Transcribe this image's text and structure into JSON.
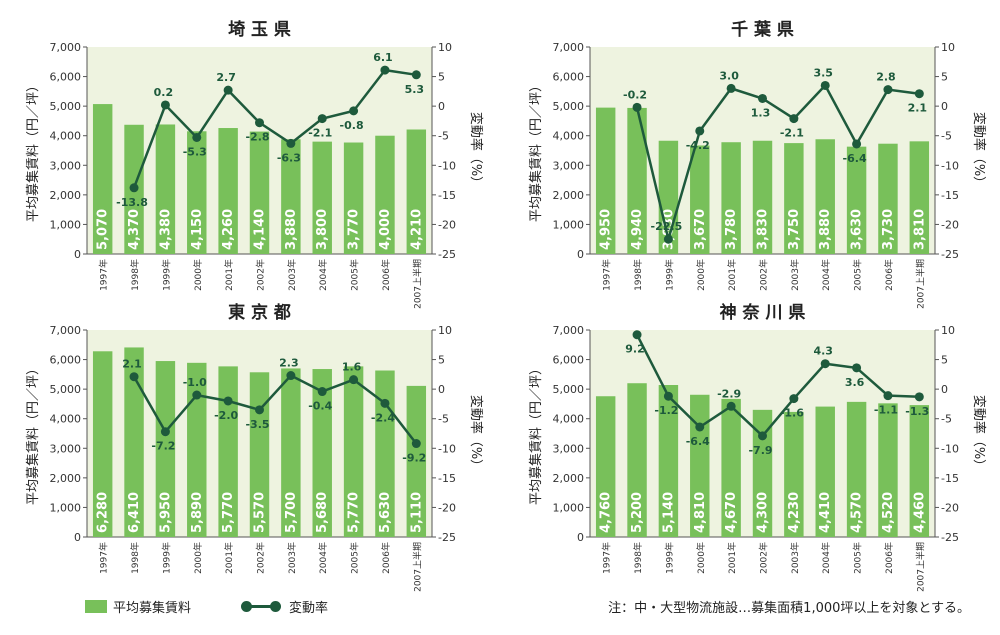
{
  "legend": {
    "bar_label": "平均募集賃料",
    "line_label": "変動率"
  },
  "note": "注：中・大型物流施設…募集面積1,000坪以上を対象とする。",
  "colors": {
    "bar": "#78c05a",
    "bar_label": "#ffffff",
    "line": "#1e5a3c",
    "plot_bg": "#eef3e0"
  },
  "chart_data": [
    {
      "type": "bar",
      "title": "埼 玉 県",
      "ylabel": "平均募集賃料（円／坪）",
      "y2label": "変動率（%）",
      "ylim": [
        0,
        7000
      ],
      "y2lim": [
        -25,
        10
      ],
      "yticks": [
        "0",
        "1,000",
        "2,000",
        "3,000",
        "4,000",
        "5,000",
        "6,000",
        "7,000"
      ],
      "y2ticks": [
        "-25",
        "-20",
        "-15",
        "-10",
        "-5",
        "0",
        "5",
        "10"
      ],
      "categories": [
        "1997年",
        "1998年",
        "1999年",
        "2000年",
        "2001年",
        "2002年",
        "2003年",
        "2004年",
        "2005年",
        "2006年",
        "2007上半期"
      ],
      "series": [
        {
          "name": "平均募集賃料",
          "type": "bar",
          "values": [
            5070,
            4370,
            4380,
            4150,
            4260,
            4140,
            3880,
            3800,
            3770,
            4000,
            4210
          ],
          "labels": [
            "5,070",
            "4,370",
            "4,380",
            "4,150",
            "4,260",
            "4,140",
            "3,880",
            "3,800",
            "3,770",
            "4,000",
            "4,210"
          ]
        },
        {
          "name": "変動率",
          "type": "line",
          "values": [
            null,
            -13.8,
            0.2,
            -5.3,
            2.7,
            -2.8,
            -6.3,
            -2.1,
            -0.8,
            6.1,
            5.3
          ],
          "labels": [
            "",
            "-13.8",
            "0.2",
            "-5.3",
            "2.7",
            "-2.8",
            "-6.3",
            "-2.1",
            "-0.8",
            "6.1",
            "5.3"
          ]
        }
      ]
    },
    {
      "type": "bar",
      "title": "千 葉 県",
      "ylabel": "平均募集賃料（円／坪）",
      "y2label": "変動率（%）",
      "ylim": [
        0,
        7000
      ],
      "y2lim": [
        -25,
        10
      ],
      "yticks": [
        "0",
        "1,000",
        "2,000",
        "3,000",
        "4,000",
        "5,000",
        "6,000",
        "7,000"
      ],
      "y2ticks": [
        "-25",
        "-20",
        "-15",
        "-10",
        "-5",
        "0",
        "5",
        "10"
      ],
      "categories": [
        "1997年",
        "1998年",
        "1999年",
        "2000年",
        "2001年",
        "2002年",
        "2003年",
        "2004年",
        "2005年",
        "2006年",
        "2007上半期"
      ],
      "series": [
        {
          "name": "平均募集賃料",
          "type": "bar",
          "values": [
            4950,
            4940,
            3830,
            3670,
            3780,
            3830,
            3750,
            3880,
            3630,
            3730,
            3810
          ],
          "labels": [
            "4,950",
            "4,940",
            "3,830",
            "3,670",
            "3,780",
            "3,830",
            "3,750",
            "3,880",
            "3,630",
            "3,730",
            "3,810"
          ]
        },
        {
          "name": "変動率",
          "type": "line",
          "values": [
            null,
            -0.2,
            -22.5,
            -4.2,
            3.0,
            1.3,
            -2.1,
            3.5,
            -6.4,
            2.8,
            2.1
          ],
          "labels": [
            "",
            "-0.2",
            "-22.5",
            "-4.2",
            "3.0",
            "1.3",
            "-2.1",
            "3.5",
            "-6.4",
            "2.8",
            "2.1"
          ]
        }
      ]
    },
    {
      "type": "bar",
      "title": "東 京 都",
      "ylabel": "平均募集賃料（円／坪）",
      "y2label": "変動率（%）",
      "ylim": [
        0,
        7000
      ],
      "y2lim": [
        -25,
        10
      ],
      "yticks": [
        "0",
        "1,000",
        "2,000",
        "3,000",
        "4,000",
        "5,000",
        "6,000",
        "7,000"
      ],
      "y2ticks": [
        "-25",
        "-20",
        "-15",
        "-10",
        "-5",
        "0",
        "5",
        "10"
      ],
      "categories": [
        "1997年",
        "1998年",
        "1999年",
        "2000年",
        "2001年",
        "2002年",
        "2003年",
        "2004年",
        "2005年",
        "2006年",
        "2007上半期"
      ],
      "series": [
        {
          "name": "平均募集賃料",
          "type": "bar",
          "values": [
            6280,
            6410,
            5950,
            5890,
            5770,
            5570,
            5700,
            5680,
            5770,
            5630,
            5110
          ],
          "labels": [
            "6,280",
            "6,410",
            "5,950",
            "5,890",
            "5,770",
            "5,570",
            "5,700",
            "5,680",
            "5,770",
            "5,630",
            "5,110"
          ]
        },
        {
          "name": "変動率",
          "type": "line",
          "values": [
            null,
            2.1,
            -7.2,
            -1.0,
            -2.0,
            -3.5,
            2.3,
            -0.4,
            1.6,
            -2.4,
            -9.2
          ],
          "labels": [
            "",
            "2.1",
            "-7.2",
            "-1.0",
            "-2.0",
            "-3.5",
            "2.3",
            "-0.4",
            "1.6",
            "-2.4",
            "-9.2"
          ]
        }
      ]
    },
    {
      "type": "bar",
      "title": "神 奈 川 県",
      "ylabel": "平均募集賃料（円／坪）",
      "y2label": "変動率（%）",
      "ylim": [
        0,
        7000
      ],
      "y2lim": [
        -25,
        10
      ],
      "yticks": [
        "0",
        "1,000",
        "2,000",
        "3,000",
        "4,000",
        "5,000",
        "6,000",
        "7,000"
      ],
      "y2ticks": [
        "-25",
        "-20",
        "-15",
        "-10",
        "-5",
        "0",
        "5",
        "10"
      ],
      "categories": [
        "1997年",
        "1998年",
        "1999年",
        "2000年",
        "2001年",
        "2002年",
        "2003年",
        "2004年",
        "2005年",
        "2006年",
        "2007上半期"
      ],
      "series": [
        {
          "name": "平均募集賃料",
          "type": "bar",
          "values": [
            4760,
            5200,
            5140,
            4810,
            4670,
            4300,
            4230,
            4410,
            4570,
            4520,
            4460
          ],
          "labels": [
            "4,760",
            "5,200",
            "5,140",
            "4,810",
            "4,670",
            "4,300",
            "4,230",
            "4,410",
            "4,570",
            "4,520",
            "4,460"
          ]
        },
        {
          "name": "変動率",
          "type": "line",
          "values": [
            null,
            9.2,
            -1.2,
            -6.4,
            -2.9,
            -7.9,
            -1.6,
            4.3,
            3.6,
            -1.1,
            -1.3
          ],
          "labels": [
            "",
            "9.2",
            "-1.2",
            "-6.4",
            "-2.9",
            "-7.9",
            "-1.6",
            "4.3",
            "3.6",
            "-1.1",
            "-1.3"
          ]
        }
      ]
    }
  ]
}
